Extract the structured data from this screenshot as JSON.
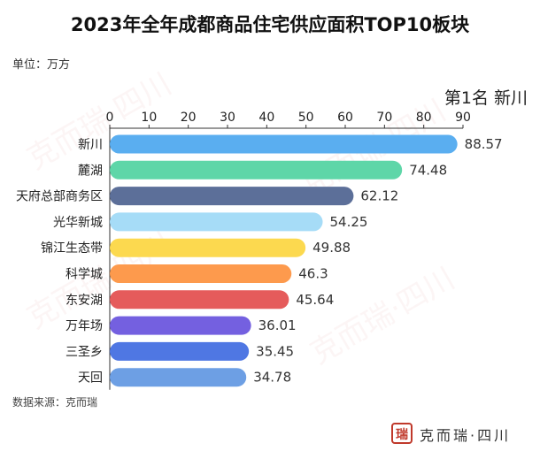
{
  "title": "2023年全年成都商品住宅供应面积TOP10板块",
  "unit_label": "单位：万方",
  "highlight_label": "第1名 新川",
  "source_label": "数据来源：克而瑞",
  "logo": {
    "seal_char": "瑞",
    "text": "克而瑞·四川"
  },
  "watermark_text": "克而瑞·四川",
  "chart_data": {
    "type": "bar",
    "orientation": "horizontal",
    "title": "2023年全年成都商品住宅供应面积TOP10板块",
    "categories": [
      "新川",
      "麓湖",
      "天府总部商务区",
      "光华新城",
      "锦江生态带",
      "科学城",
      "东安湖",
      "万年场",
      "三圣乡",
      "天回"
    ],
    "values": [
      88.57,
      74.48,
      62.12,
      54.25,
      49.88,
      46.3,
      45.64,
      36.01,
      35.45,
      34.78
    ],
    "value_labels": [
      "88.57",
      "74.48",
      "62.12",
      "54.25",
      "49.88",
      "46.3",
      "45.64",
      "36.01",
      "35.45",
      "34.78"
    ],
    "xlim": [
      0,
      90
    ],
    "x_ticks": [
      0,
      10,
      20,
      30,
      40,
      50,
      60,
      70,
      80,
      90
    ],
    "axis_position": "top",
    "grid": false,
    "colors": [
      "#5aaef0",
      "#5ed6a8",
      "#5c6f99",
      "#a6dcf7",
      "#fcd94f",
      "#fd9a4d",
      "#e55b5b",
      "#7460e0",
      "#4f77e3",
      "#6d9fe4"
    ]
  }
}
